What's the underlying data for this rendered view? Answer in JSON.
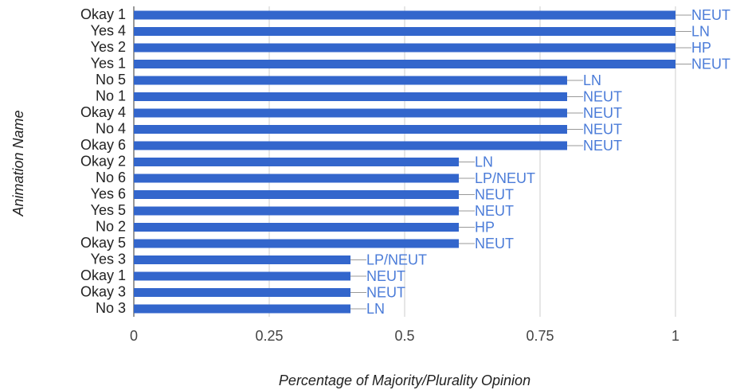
{
  "chart_data": {
    "type": "hbar",
    "categories": [
      "Okay 1",
      "Yes 4",
      "Yes 2",
      "Yes 1",
      "No 5",
      "No 1",
      "Okay 4",
      "No 4",
      "Okay 6",
      "Okay 2",
      "No 6",
      "Yes 6",
      "Yes 5",
      "No 2",
      "Okay 5",
      "Yes 3",
      "Okay 1",
      "Okay 3",
      "No 3"
    ],
    "values": [
      1,
      1,
      1,
      1,
      0.8,
      0.8,
      0.8,
      0.8,
      0.8,
      0.6,
      0.6,
      0.6,
      0.6,
      0.6,
      0.6,
      0.4,
      0.4,
      0.4,
      0.4
    ],
    "annotations": [
      "NEUT",
      "LN",
      "HP",
      "NEUT",
      "LN",
      "NEUT",
      "NEUT",
      "NEUT",
      "NEUT",
      "LN",
      "LP/NEUT",
      "NEUT",
      "NEUT",
      "HP",
      "NEUT",
      "LP/NEUT",
      "NEUT",
      "NEUT",
      "LN"
    ],
    "color": "#3366cc",
    "xlim": [
      0,
      1
    ],
    "xticks": [
      0,
      0.25,
      0.5,
      0.75,
      1
    ],
    "grid": true,
    "xlabel": "Percentage of Majority/Plurality Opinion",
    "ylabel": "Animation Name"
  }
}
